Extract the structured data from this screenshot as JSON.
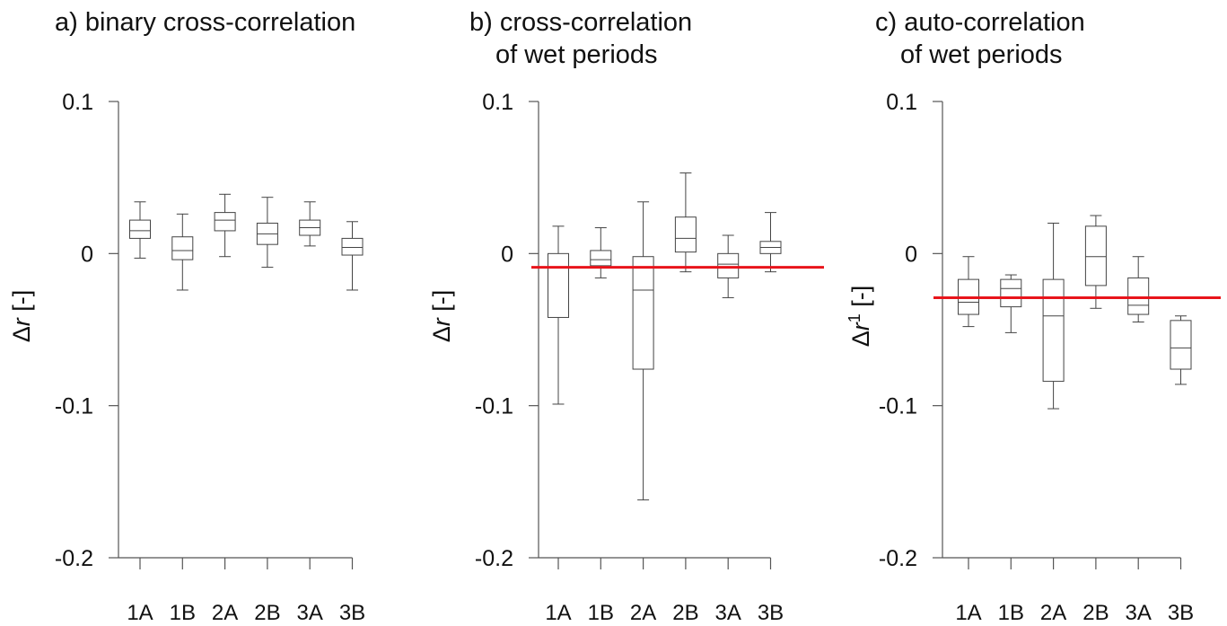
{
  "chart_data": [
    {
      "type": "box",
      "title": "a) binary cross-correlation",
      "ylabel_symbol": "Δ",
      "ylabel_var": "r",
      "ylabel_sup": "",
      "ylabel_unit": " [-]",
      "ylim": [
        -0.2,
        0.1
      ],
      "yticks": [
        0.1,
        0,
        -0.1,
        -0.2
      ],
      "ytick_labels": [
        "0.1",
        "0",
        "-0.1",
        "-0.2"
      ],
      "categories": [
        "1A",
        "1B",
        "2A",
        "2B",
        "3A",
        "3B"
      ],
      "boxes": [
        {
          "whislo": -0.003,
          "q1": 0.01,
          "med": 0.015,
          "q3": 0.022,
          "whishi": 0.034
        },
        {
          "whislo": -0.024,
          "q1": -0.004,
          "med": 0.002,
          "q3": 0.011,
          "whishi": 0.026
        },
        {
          "whislo": -0.002,
          "q1": 0.015,
          "med": 0.022,
          "q3": 0.027,
          "whishi": 0.039
        },
        {
          "whislo": -0.009,
          "q1": 0.006,
          "med": 0.013,
          "q3": 0.02,
          "whishi": 0.037
        },
        {
          "whislo": 0.005,
          "q1": 0.012,
          "med": 0.017,
          "q3": 0.022,
          "whishi": 0.034
        },
        {
          "whislo": -0.024,
          "q1": -0.001,
          "med": 0.004,
          "q3": 0.01,
          "whishi": 0.021
        }
      ],
      "reference_line": null,
      "reference_color": "#e8141b"
    },
    {
      "type": "box",
      "title": "b) cross-correlation",
      "title_line2": "of wet periods",
      "ylabel_symbol": "Δ",
      "ylabel_var": "r",
      "ylabel_sup": "",
      "ylabel_unit": " [-]",
      "ylim": [
        -0.2,
        0.1
      ],
      "yticks": [
        0.1,
        0,
        -0.1,
        -0.2
      ],
      "ytick_labels": [
        "0.1",
        "0",
        "-0.1",
        "-0.2"
      ],
      "categories": [
        "1A",
        "1B",
        "2A",
        "2B",
        "3A",
        "3B"
      ],
      "boxes": [
        {
          "whislo": -0.099,
          "q1": -0.042,
          "med": -0.009,
          "q3": 0.0,
          "whishi": 0.018
        },
        {
          "whislo": -0.016,
          "q1": -0.008,
          "med": -0.004,
          "q3": 0.002,
          "whishi": 0.017
        },
        {
          "whislo": -0.162,
          "q1": -0.076,
          "med": -0.024,
          "q3": -0.002,
          "whishi": 0.034
        },
        {
          "whislo": -0.012,
          "q1": 0.001,
          "med": 0.01,
          "q3": 0.024,
          "whishi": 0.053
        },
        {
          "whislo": -0.029,
          "q1": -0.016,
          "med": -0.007,
          "q3": 0.0,
          "whishi": 0.012
        },
        {
          "whislo": -0.012,
          "q1": 0.0,
          "med": 0.004,
          "q3": 0.008,
          "whishi": 0.027
        }
      ],
      "reference_line": -0.009,
      "reference_color": "#e8141b"
    },
    {
      "type": "box",
      "title": "c) auto-correlation",
      "title_line2": "of wet periods",
      "ylabel_symbol": "Δ",
      "ylabel_var": "r",
      "ylabel_sup": "1",
      "ylabel_unit": " [-]",
      "ylim": [
        -0.2,
        0.1
      ],
      "yticks": [
        0.1,
        0,
        -0.1,
        -0.2
      ],
      "ytick_labels": [
        "0.1",
        "0",
        "-0.1",
        "-0.2"
      ],
      "categories": [
        "1A",
        "1B",
        "2A",
        "2B",
        "3A",
        "3B"
      ],
      "boxes": [
        {
          "whislo": -0.048,
          "q1": -0.04,
          "med": -0.032,
          "q3": -0.017,
          "whishi": -0.002
        },
        {
          "whislo": -0.052,
          "q1": -0.035,
          "med": -0.023,
          "q3": -0.017,
          "whishi": -0.014
        },
        {
          "whislo": -0.102,
          "q1": -0.084,
          "med": -0.041,
          "q3": -0.017,
          "whishi": 0.02
        },
        {
          "whislo": -0.036,
          "q1": -0.021,
          "med": -0.002,
          "q3": 0.018,
          "whishi": 0.025
        },
        {
          "whislo": -0.045,
          "q1": -0.04,
          "med": -0.034,
          "q3": -0.016,
          "whishi": -0.002
        },
        {
          "whislo": -0.086,
          "q1": -0.076,
          "med": -0.062,
          "q3": -0.044,
          "whishi": -0.041
        }
      ],
      "reference_line": -0.029,
      "reference_color": "#e8141b"
    }
  ]
}
